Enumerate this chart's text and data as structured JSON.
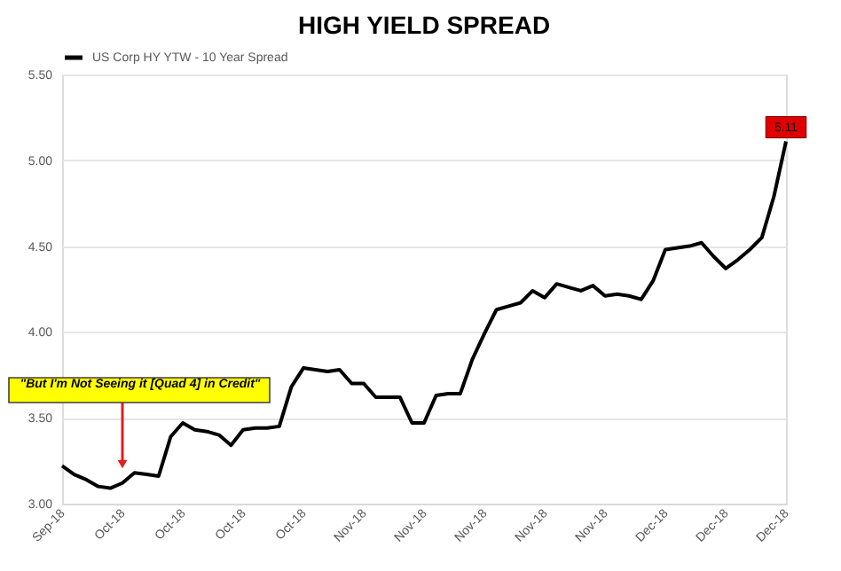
{
  "chart_data": {
    "type": "line",
    "title": "HIGH YIELD SPREAD",
    "categories": [
      "Sep-18",
      null,
      null,
      null,
      null,
      "Oct-18",
      null,
      null,
      null,
      null,
      "Oct-18",
      null,
      null,
      null,
      null,
      "Oct-18",
      null,
      null,
      null,
      null,
      "Oct-18",
      null,
      null,
      null,
      null,
      "Nov-18",
      null,
      null,
      null,
      null,
      "Nov-18",
      null,
      null,
      null,
      null,
      "Nov-18",
      null,
      null,
      null,
      null,
      "Nov-18",
      null,
      null,
      null,
      null,
      "Nov-18",
      null,
      null,
      null,
      null,
      "Dec-18",
      null,
      null,
      null,
      null,
      "Dec-18",
      null,
      null,
      null,
      null,
      "Dec-18"
    ],
    "series": [
      {
        "name": "US Corp HY YTW - 10 Year Spread",
        "color": "#000000",
        "values": [
          3.22,
          3.17,
          3.14,
          3.1,
          3.09,
          3.12,
          3.18,
          3.17,
          3.16,
          3.39,
          3.47,
          3.43,
          3.42,
          3.4,
          3.34,
          3.43,
          3.44,
          3.44,
          3.45,
          3.68,
          3.79,
          3.78,
          3.77,
          3.78,
          3.7,
          3.7,
          3.62,
          3.62,
          3.62,
          3.47,
          3.47,
          3.63,
          3.64,
          3.64,
          3.84,
          3.99,
          4.13,
          4.15,
          4.17,
          4.24,
          4.2,
          4.28,
          4.26,
          4.24,
          4.27,
          4.21,
          4.22,
          4.21,
          4.19,
          4.3,
          4.48,
          4.49,
          4.5,
          4.52,
          4.44,
          4.37,
          4.42,
          4.48,
          4.55,
          4.79,
          5.11
        ],
        "value_labels": [
          null,
          null,
          null,
          null,
          null,
          null,
          null,
          null,
          null,
          null,
          null,
          null,
          null,
          null,
          null,
          null,
          null,
          null,
          null,
          null,
          null,
          null,
          null,
          null,
          null,
          null,
          null,
          null,
          null,
          null,
          null,
          null,
          null,
          null,
          null,
          null,
          null,
          null,
          null,
          null,
          null,
          null,
          null,
          null,
          null,
          null,
          null,
          null,
          null,
          null,
          null,
          null,
          null,
          null,
          null,
          null,
          null,
          null,
          null,
          null,
          "5.11"
        ]
      }
    ],
    "ylim": [
      3.0,
      5.5
    ],
    "yticks": [
      {
        "value": 3.0,
        "label": "3.00"
      },
      {
        "value": 3.5,
        "label": "3.50"
      },
      {
        "value": 4.0,
        "label": "4.00"
      },
      {
        "value": 4.5,
        "label": "4.50"
      },
      {
        "value": 5.0,
        "label": "5.00"
      },
      {
        "value": 5.5,
        "label": "5.50"
      }
    ],
    "grid": "y",
    "legend": "top",
    "marker": "none",
    "line_style": "solid",
    "annotations": [
      {
        "text": "\"But I'm Not Seeing it [Quad 4] in Credit\"",
        "x": "Oct-18",
        "y": 3.2
      }
    ]
  }
}
